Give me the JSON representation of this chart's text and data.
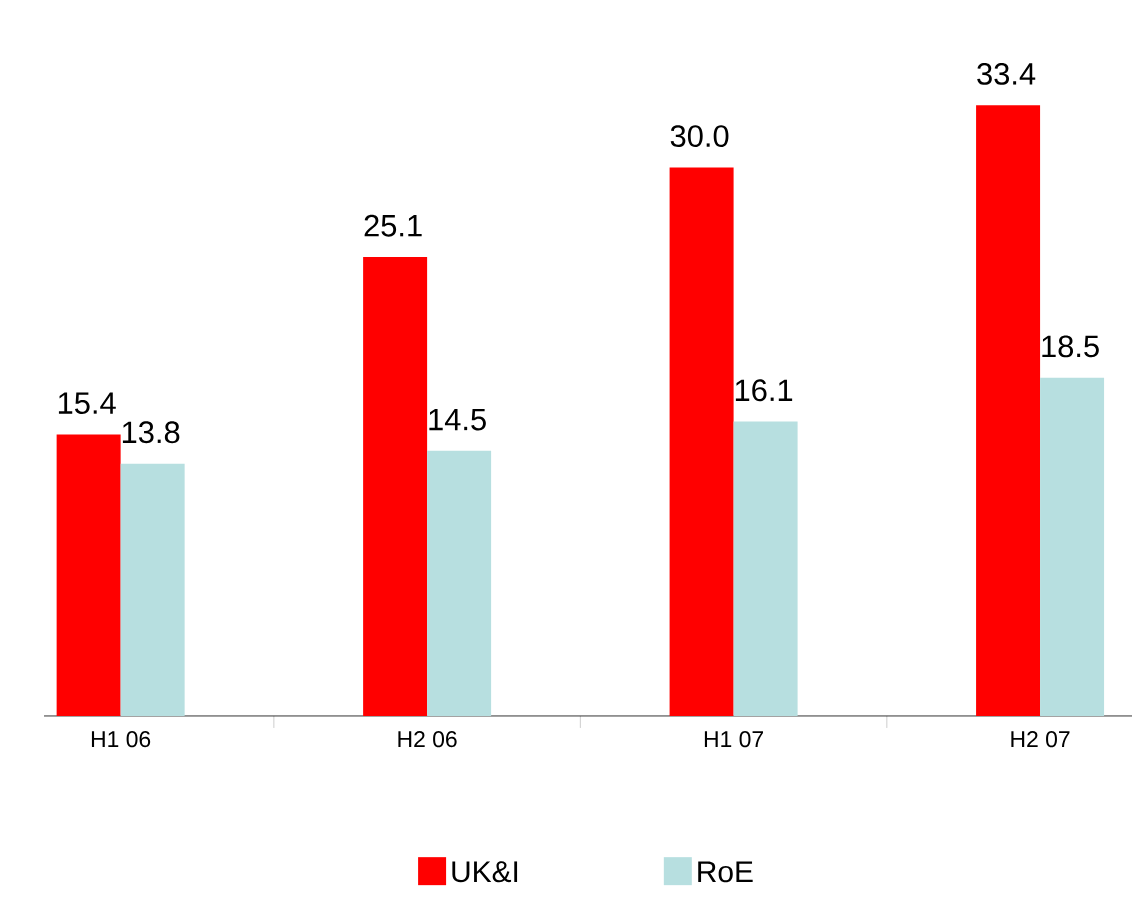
{
  "chart_data": {
    "type": "bar",
    "categories": [
      "H1 06",
      "H2 06",
      "H1 07",
      "H2 07"
    ],
    "series": [
      {
        "name": "UK&I",
        "color": "#ff0000",
        "values": [
          15.4,
          25.1,
          30.0,
          33.4
        ],
        "value_labels": [
          "15.4",
          "25.1",
          "30.0",
          "33.4"
        ]
      },
      {
        "name": "RoE",
        "color": "#b7dfe0",
        "values": [
          13.8,
          14.5,
          16.1,
          18.5
        ],
        "value_labels": [
          "13.8",
          "14.5",
          "16.1",
          "18.5"
        ]
      }
    ],
    "legend": "bottom"
  }
}
